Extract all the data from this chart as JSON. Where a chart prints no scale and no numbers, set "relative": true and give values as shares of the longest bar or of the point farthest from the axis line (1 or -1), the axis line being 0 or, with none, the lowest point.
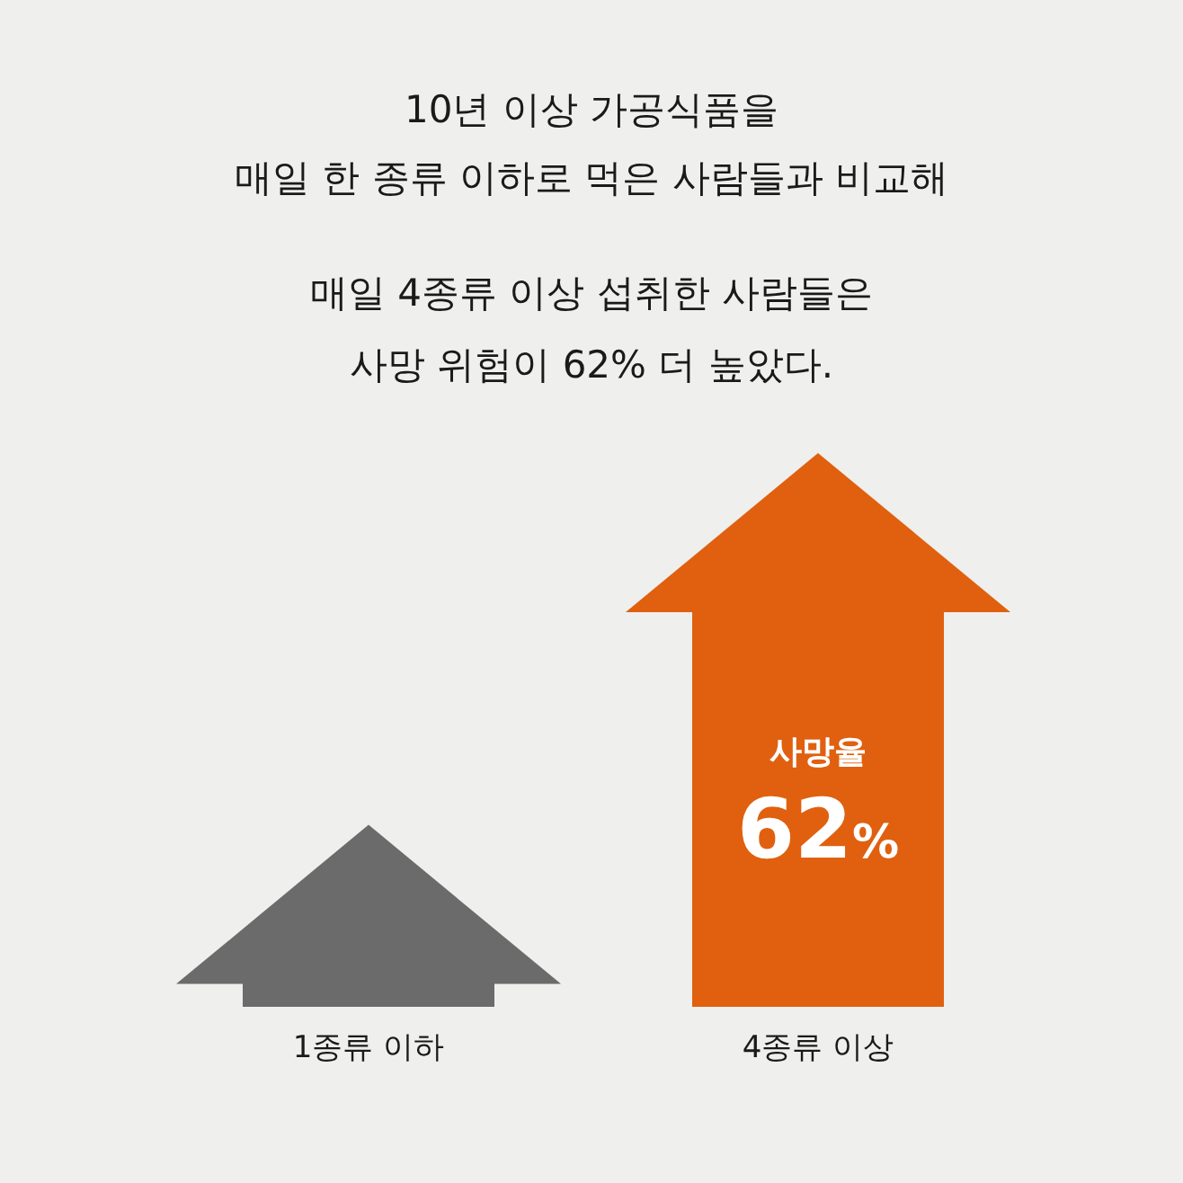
{
  "chart_data": {
    "type": "bar",
    "relative": true,
    "title": "10년 이상 가공식품을\n매일 한 종류 이하로 먹은 사람들과 비교해",
    "subtitle": "매일 4종류 이상 섭취한 사람들은\n사망 위험이 62% 더 높았다.",
    "categories": [
      "1종류 이하",
      "4종류 이상"
    ],
    "values": [
      0.06,
      1
    ],
    "colors": [
      "#6b6b6b",
      "#e0600f"
    ],
    "annotations": [
      "사망율",
      "62%"
    ],
    "tick_labels": "x"
  }
}
